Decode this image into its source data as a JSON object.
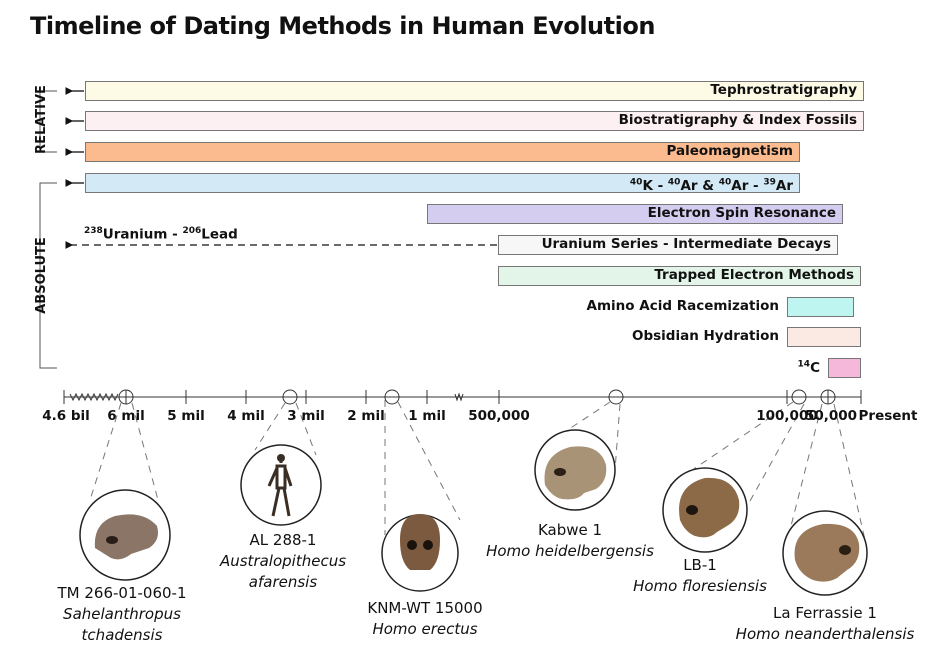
{
  "title": "Timeline of Dating Methods in Human Evolution",
  "categories": {
    "relative": "RELATIVE",
    "absolute": "ABSOLUTE"
  },
  "methods": [
    {
      "label": "Tephrostratigraphy",
      "color": "#fdfbe6"
    },
    {
      "label": "Biostratigraphy & Index Fossils",
      "color": "#fdf0f3"
    },
    {
      "label": "Paleomagnetism",
      "color": "#fbbb8e"
    },
    {
      "label": "K - Ar & Ar - Ar",
      "sup": [
        "40",
        "40",
        "40",
        "39"
      ],
      "color": "#d3e9f6"
    },
    {
      "label": "Electron Spin Resonance",
      "color": "#d5cdef"
    },
    {
      "label": "Uranium Series - Intermediate Decays",
      "color": "#f7f7f7"
    },
    {
      "label": "Trapped Electron Methods",
      "color": "#e3f4e9"
    },
    {
      "label": "Amino Acid Racemization",
      "color": "#bff5f0"
    },
    {
      "label": "Obsidian Hydration",
      "color": "#fbe9e3"
    },
    {
      "label": "C",
      "sup": "14",
      "color": "#f6b8da"
    }
  ],
  "uranium_lead": {
    "sup1": "238",
    "name1": "Uranium - ",
    "sup2": "206",
    "name2": "Lead"
  },
  "axis_ticks": [
    "4.6 bil",
    "6 mil",
    "5 mil",
    "4 mil",
    "3 mil",
    "2 mil",
    "1 mil",
    "500,000",
    "100,000",
    "50,000",
    "Present"
  ],
  "specimens": [
    {
      "id": "TM 266-01-060-1",
      "species": [
        "Sahelanthropus",
        "tchadensis"
      ]
    },
    {
      "id": "AL 288-1",
      "species": [
        "Australopithecus",
        "afarensis"
      ]
    },
    {
      "id": "KNM-WT 15000",
      "species": [
        "Homo erectus"
      ]
    },
    {
      "id": "Kabwe 1",
      "species": [
        "Homo heidelbergensis"
      ]
    },
    {
      "id": "LB-1",
      "species": [
        "Homo floresiensis"
      ]
    },
    {
      "id": "La Ferrassie 1",
      "species": [
        "Homo neanderthalensis"
      ]
    }
  ]
}
